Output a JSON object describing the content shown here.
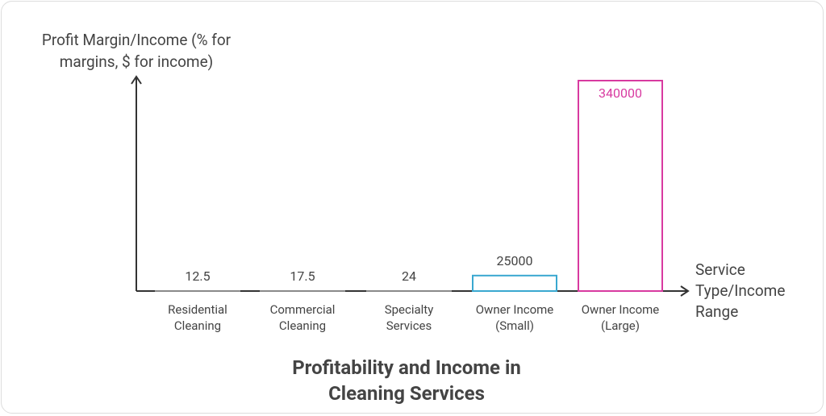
{
  "chart_data": {
    "type": "bar",
    "title": "Profitability and Income in Cleaning Services",
    "xlabel": "Service Type/Income Range",
    "ylabel": "Profit Margin/Income (% for margins, $ for income)",
    "categories": [
      "Residential Cleaning",
      "Commercial Cleaning",
      "Specialty Services",
      "Owner Income (Small)",
      "Owner Income (Large)"
    ],
    "values": [
      12.5,
      17.5,
      24,
      25000,
      340000
    ],
    "colors": [
      "#8a8a8a",
      "#8a8a8a",
      "#8a8a8a",
      "#3aa8d0",
      "#d83aa0"
    ],
    "ylim": [
      0,
      340000
    ]
  }
}
